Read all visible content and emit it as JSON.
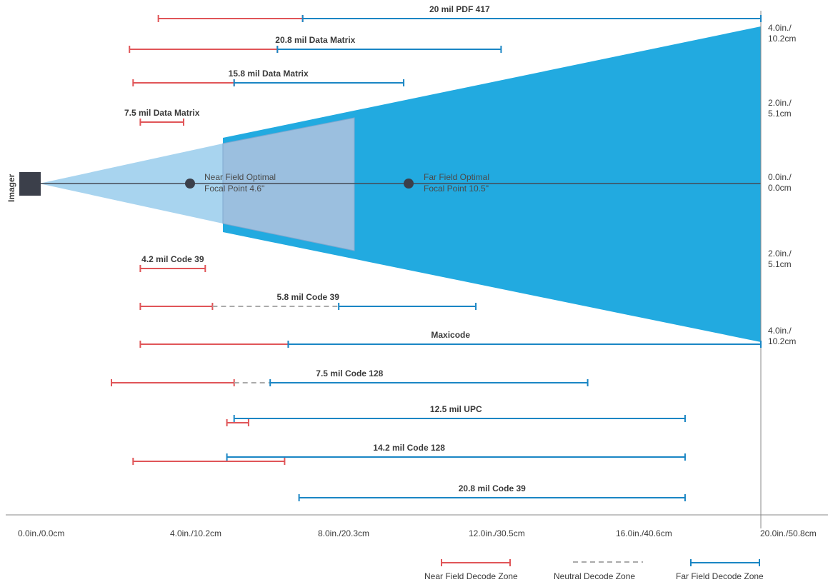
{
  "imager_label": "Imager",
  "focal_points": [
    {
      "line1": "Near Field Optimal",
      "line2": "Focal Point 4.6\""
    },
    {
      "line1": "Far Field Optimal",
      "line2": "Focal Point 10.5\""
    }
  ],
  "right_scale": [
    {
      "line1": "4.0in./",
      "line2": "10.2cm"
    },
    {
      "line1": "2.0in./",
      "line2": "5.1cm"
    },
    {
      "line1": "0.0in./",
      "line2": "0.0cm"
    },
    {
      "line1": "2.0in./",
      "line2": "5.1cm"
    },
    {
      "line1": "4.0in./",
      "line2": "10.2cm"
    }
  ],
  "x_axis_labels": [
    "0.0in./0.0cm",
    "4.0in./10.2cm",
    "8.0in./20.3cm",
    "12.0in./30.5cm",
    "16.0in./40.6cm",
    "20.0in./50.8cm"
  ],
  "legend": {
    "near": "Near Field Decode Zone",
    "neutral": "Neutral Decode Zone",
    "far": "Far Field Decode Zone"
  },
  "colors": {
    "near": "#e05558",
    "far": "#1a86c4",
    "neutral": "#aaaaaa",
    "cone_light": "#a8d4ef",
    "cone_dark": "#22aae0",
    "imager": "#3b3f4a"
  },
  "ranges": [
    {
      "label": "20 mil PDF 417",
      "near": [
        3.3,
        7.3
      ],
      "far": [
        7.3,
        20.0
      ]
    },
    {
      "label": "20.8 mil Data Matrix",
      "near": [
        2.5,
        6.6
      ],
      "far": [
        6.6,
        12.8
      ]
    },
    {
      "label": "15.8 mil Data Matrix",
      "near": [
        2.6,
        5.4
      ],
      "far": [
        5.4,
        10.1
      ]
    },
    {
      "label": "7.5 mil Data Matrix",
      "near": [
        2.8,
        4.0
      ]
    },
    {
      "label": "4.2 mil Code 39",
      "near": [
        2.8,
        4.6
      ]
    },
    {
      "label": "5.8 mil Code 39",
      "near": [
        2.8,
        4.8
      ],
      "neutral": [
        4.8,
        8.3
      ],
      "far": [
        8.3,
        12.1
      ]
    },
    {
      "label": "Maxicode",
      "near": [
        2.8,
        6.9
      ],
      "far": [
        6.9,
        20.0
      ]
    },
    {
      "label": "7.5 mil Code 128",
      "near": [
        2.0,
        5.4
      ],
      "neutral": [
        5.4,
        6.4
      ],
      "far": [
        6.4,
        15.2
      ]
    },
    {
      "label": "12.5 mil UPC",
      "near": [
        5.2,
        5.8
      ],
      "far": [
        5.4,
        17.9
      ]
    },
    {
      "label": "14.2 mil Code 128",
      "near": [
        2.6,
        6.8
      ],
      "far": [
        5.2,
        17.9
      ]
    },
    {
      "label": "20.8 mil Code 39",
      "far": [
        7.2,
        17.9
      ]
    }
  ]
}
